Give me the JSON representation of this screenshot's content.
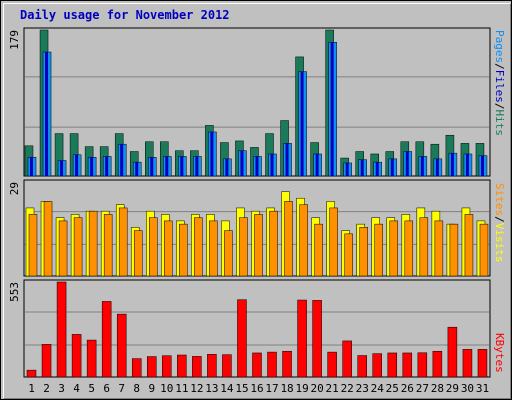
{
  "title": "Daily usage for November 2012",
  "colors": {
    "pages": "#1a7a5a",
    "files": "#1090f0",
    "hits": "#1a7a5a",
    "visits": "#ffff00",
    "sites": "#ff9000",
    "kbytes": "#ff0000",
    "weekend": "#2a8a6a",
    "weekday": "#000000",
    "files_dark": "#0000c0"
  },
  "chart_data": [
    {
      "type": "bar",
      "panel": "top",
      "ymax_label": "179",
      "ylim": [
        0,
        179
      ],
      "legend": [
        "Pages",
        "/",
        "Files",
        "/",
        "Hits"
      ],
      "categories": [
        "1",
        "2",
        "3",
        "4",
        "5",
        "6",
        "7",
        "8",
        "9",
        "10",
        "11",
        "12",
        "13",
        "14",
        "15",
        "16",
        "17",
        "18",
        "19",
        "20",
        "21",
        "22",
        "23",
        "24",
        "25",
        "26",
        "27",
        "28",
        "29",
        "30",
        "31"
      ],
      "series": [
        {
          "name": "Hits",
          "values": [
            37,
            179,
            52,
            52,
            36,
            36,
            52,
            30,
            42,
            42,
            31,
            31,
            62,
            41,
            43,
            35,
            52,
            68,
            146,
            41,
            179,
            22,
            30,
            27,
            30,
            42,
            42,
            39,
            50,
            40,
            40
          ]
        },
        {
          "name": "Files",
          "values": [
            23,
            152,
            19,
            26,
            23,
            24,
            39,
            17,
            23,
            24,
            24,
            24,
            54,
            21,
            31,
            24,
            27,
            40,
            128,
            27,
            164,
            16,
            20,
            17,
            21,
            30,
            24,
            21,
            28,
            27,
            25
          ]
        },
        {
          "name": "Pages",
          "values": [
            23,
            152,
            19,
            26,
            23,
            24,
            39,
            17,
            23,
            24,
            24,
            24,
            54,
            21,
            31,
            24,
            27,
            40,
            128,
            27,
            164,
            16,
            20,
            17,
            21,
            30,
            24,
            21,
            28,
            27,
            25
          ]
        }
      ]
    },
    {
      "type": "bar",
      "panel": "middle",
      "ymax_label": "29",
      "ylim": [
        0,
        29
      ],
      "legend": [
        "Sites",
        "/",
        "Visits"
      ],
      "series": [
        {
          "name": "Visits",
          "values": [
            21,
            23,
            18,
            19,
            20,
            20,
            22,
            15,
            20,
            19,
            17,
            19,
            19,
            17,
            21,
            20,
            21,
            26,
            24,
            18,
            23,
            14,
            16,
            18,
            18,
            19,
            21,
            20,
            16,
            21,
            17
          ]
        },
        {
          "name": "Sites",
          "values": [
            19,
            23,
            17,
            18,
            20,
            19,
            21,
            14,
            18,
            17,
            16,
            18,
            17,
            14,
            18,
            19,
            20,
            23,
            22,
            16,
            21,
            13,
            15,
            16,
            17,
            17,
            18,
            17,
            16,
            19,
            16
          ]
        }
      ]
    },
    {
      "type": "bar",
      "panel": "bottom",
      "ymax_label": "553",
      "ylim": [
        0,
        553
      ],
      "legend": [
        "KBytes"
      ],
      "series": [
        {
          "name": "KBytes",
          "values": [
            40,
            190,
            553,
            248,
            215,
            440,
            366,
            107,
            119,
            124,
            128,
            120,
            132,
            130,
            450,
            140,
            145,
            150,
            448,
            446,
            145,
            210,
            125,
            136,
            140,
            140,
            141,
            150,
            290,
            161,
            161
          ]
        }
      ]
    }
  ],
  "xaxis": {
    "labels": [
      "1",
      "2",
      "3",
      "4",
      "5",
      "6",
      "7",
      "8",
      "9",
      "10",
      "11",
      "12",
      "13",
      "14",
      "15",
      "16",
      "17",
      "18",
      "19",
      "20",
      "21",
      "22",
      "23",
      "24",
      "25",
      "26",
      "27",
      "28",
      "29",
      "30",
      "31"
    ],
    "weekend_days": [
      "3",
      "4",
      "10",
      "11",
      "17",
      "18",
      "24",
      "25",
      "31"
    ]
  }
}
